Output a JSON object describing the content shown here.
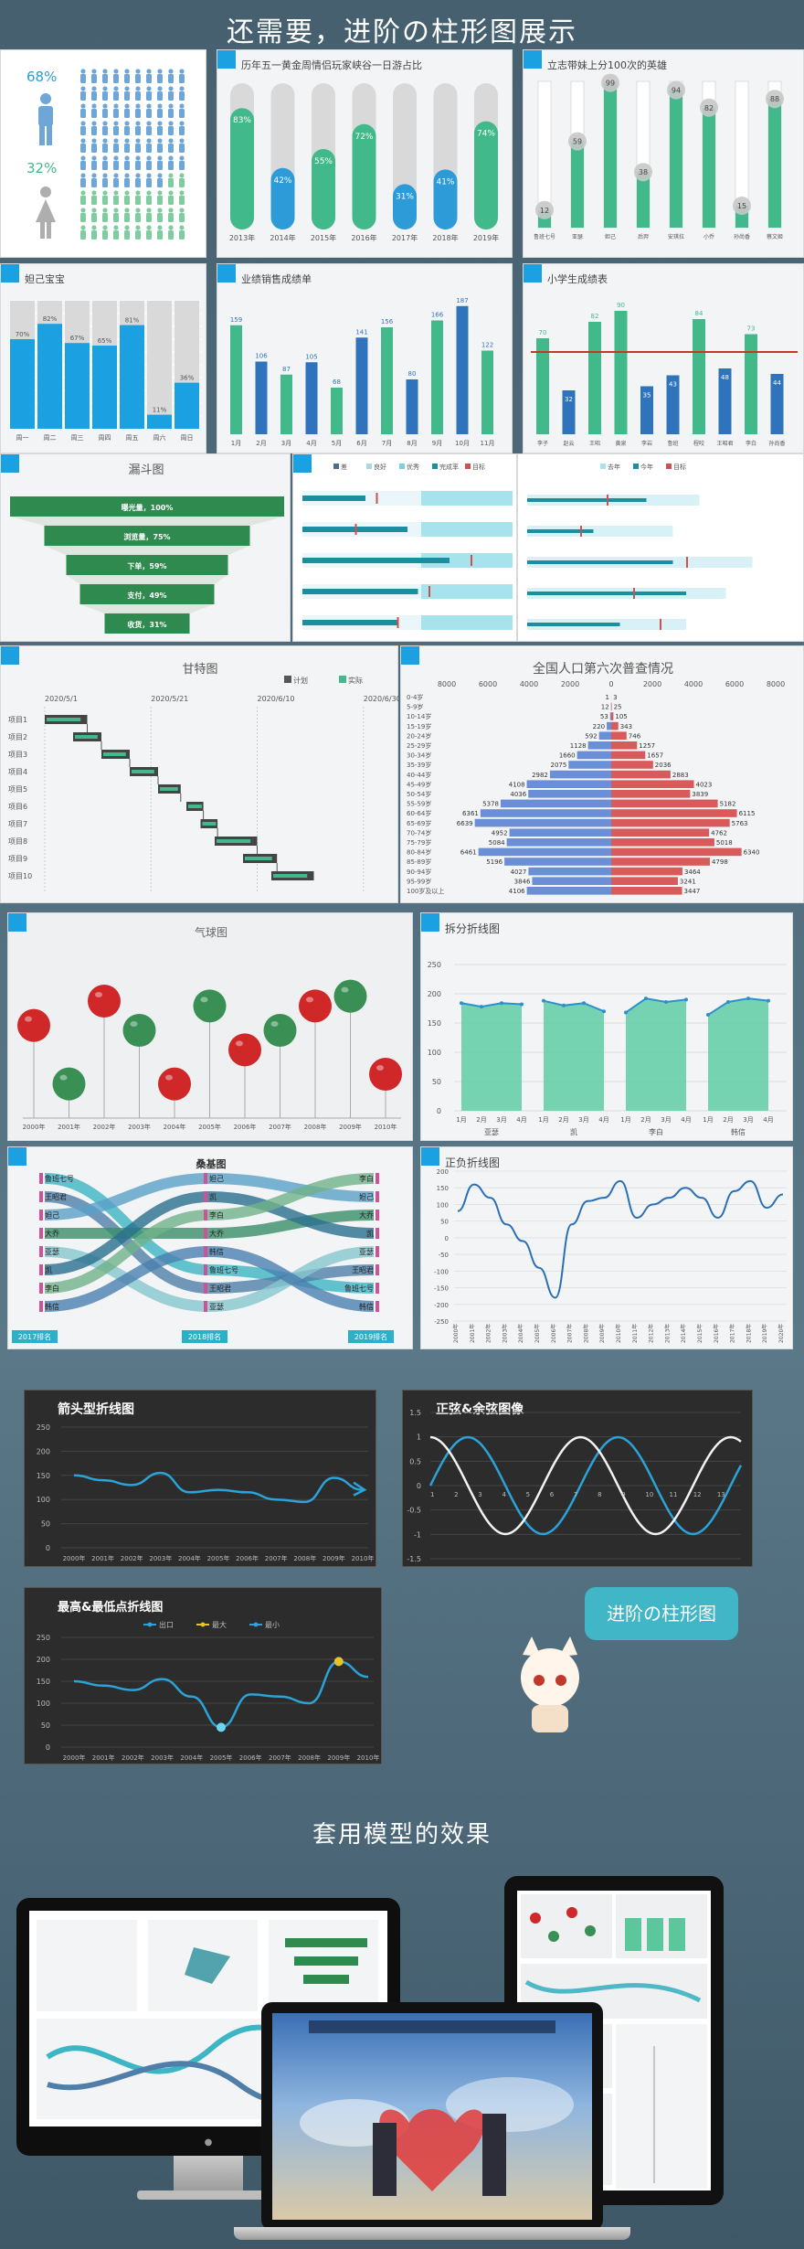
{
  "page": {
    "title": "还需要，进阶の柱形图展示",
    "section2": "套用模型的效果",
    "bubble": "进阶の柱形图"
  },
  "colors": {
    "green": "#42b98a",
    "blue": "#2c9bd8",
    "red": "#c0392b",
    "grey": "#d9d9d9"
  },
  "gender": {
    "male_pct": "68%",
    "female_pct": "32%",
    "male_share": 0.68
  },
  "capsule": {
    "title": "历年五一黄金周情侣玩家峡谷一日游占比",
    "chart_data": {
      "type": "bar",
      "categories": [
        "2013年",
        "2014年",
        "2015年",
        "2016年",
        "2017年",
        "2018年",
        "2019年"
      ],
      "values": [
        83,
        42,
        55,
        72,
        31,
        41,
        74
      ],
      "labels": [
        "83%",
        "42%",
        "55%",
        "72%",
        "31%",
        "41%",
        "74%"
      ],
      "ylim": [
        0,
        100
      ]
    }
  },
  "heroes": {
    "title": "立志带妹上分100次的英雄",
    "chart_data": {
      "type": "bar",
      "categories": [
        "鲁班七号",
        "亚瑟",
        "妲己",
        "后羿",
        "安琪拉",
        "小乔",
        "孙尚香",
        "蔡文姬"
      ],
      "values": [
        12,
        59,
        99,
        38,
        94,
        82,
        15,
        88
      ],
      "ylim": [
        0,
        100
      ]
    }
  },
  "daji": {
    "title": "妲己宝宝",
    "chart_data": {
      "type": "bar",
      "categories": [
        "周一",
        "周二",
        "周三",
        "周四",
        "周五",
        "周六",
        "周日"
      ],
      "values": [
        70,
        82,
        67,
        65,
        81,
        11,
        36
      ],
      "labels": [
        "70%",
        "82%",
        "67%",
        "65%",
        "81%",
        "11%",
        "36%"
      ],
      "ylim": [
        0,
        100
      ]
    }
  },
  "sales": {
    "title": "业绩销售成绩单",
    "chart_data": {
      "type": "bar",
      "categories": [
        "1月",
        "2月",
        "3月",
        "4月",
        "5月",
        "6月",
        "7月",
        "8月",
        "9月",
        "10月",
        "11月"
      ],
      "values": [
        159,
        106,
        87,
        105,
        68,
        141,
        156,
        80,
        166,
        187,
        122
      ]
    }
  },
  "pupils": {
    "title": "小学生成绩表",
    "chart_data": {
      "type": "bar",
      "categories": [
        "李子",
        "赵云",
        "王昭",
        "黄泉",
        "李岩",
        "鲁班",
        "程咬",
        "王昭君",
        "李白",
        "孙尚香"
      ],
      "values": [
        70,
        32,
        82,
        90,
        35,
        43,
        84,
        48,
        73,
        44
      ],
      "target": 60
    }
  },
  "funnel": {
    "title": "漏斗图",
    "chart_data": {
      "type": "bar",
      "categories": [
        "曝光量",
        "浏览量",
        "下单",
        "支付",
        "收货"
      ],
      "values": [
        100,
        75,
        59,
        49,
        31
      ],
      "labels": [
        "曝光量，100%",
        "浏览量，75%",
        "下单，59%",
        "支付，49%",
        "收货，31%"
      ]
    }
  },
  "bullet1": {
    "legend": [
      "差",
      "良好",
      "优秀",
      "完成率",
      "目标"
    ]
  },
  "bullet2": {
    "legend": [
      "去年",
      "今年",
      "目标"
    ]
  },
  "gantt": {
    "title": "甘特图",
    "legend": [
      "计划",
      "实际"
    ],
    "dates": [
      "2020/5/1",
      "2020/5/21",
      "2020/6/10",
      "2020/6/30"
    ],
    "chart_data": {
      "type": "bar",
      "categories": [
        "项目1",
        "项目2",
        "项目3",
        "项目4",
        "项目5",
        "项目6",
        "项目7",
        "项目8",
        "项目9",
        "项目10"
      ]
    }
  },
  "pyramid": {
    "title": "全国人口第六次普查情况",
    "axis": [
      "8000",
      "6000",
      "4000",
      "2000",
      "0",
      "2000",
      "4000",
      "6000",
      "8000"
    ],
    "chart_data": {
      "type": "bar",
      "categories": [
        "0-4岁",
        "5-9岁",
        "10-14岁",
        "15-19岁",
        "20-24岁",
        "25-29岁",
        "30-34岁",
        "35-39岁",
        "40-44岁",
        "45-49岁",
        "50-54岁",
        "55-59岁",
        "60-64岁",
        "65-69岁",
        "70-74岁",
        "75-79岁",
        "80-84岁",
        "85-89岁",
        "90-94岁",
        "95-99岁",
        "100岁及以上"
      ],
      "series": [
        {
          "values": [
            1,
            12,
            53,
            220,
            592,
            1128,
            1660,
            2075,
            2982,
            4108,
            4036,
            5378,
            6361,
            6639,
            4952,
            5084,
            6461,
            5196,
            4027,
            3846,
            4106
          ]
        },
        {
          "values": [
            3,
            25,
            105,
            343,
            746,
            1257,
            1657,
            2036,
            2883,
            4023,
            3839,
            5182,
            6115,
            5763,
            4762,
            5018,
            6340,
            4798,
            3464,
            3241,
            3447
          ]
        }
      ]
    }
  },
  "balloon": {
    "title": "气球图",
    "chart_data": {
      "type": "scatter",
      "categories": [
        "2000年",
        "2001年",
        "2002年",
        "2003年",
        "2004年",
        "2005年",
        "2006年",
        "2007年",
        "2008年",
        "2009年",
        "2010年"
      ],
      "values": [
        95,
        35,
        120,
        90,
        35,
        115,
        70,
        90,
        115,
        125,
        45
      ]
    }
  },
  "split": {
    "title": "拆分折线图",
    "groups": [
      "亚瑟",
      "凯",
      "李白",
      "韩信"
    ],
    "months": [
      "1月",
      "2月",
      "3月",
      "4月"
    ],
    "yticks": [
      "250",
      "200",
      "150",
      "100",
      "50",
      "0"
    ],
    "chart_data": {
      "type": "area",
      "series": [
        {
          "name": "亚瑟",
          "values": [
            184,
            178,
            184,
            182
          ]
        },
        {
          "name": "凯",
          "values": [
            188,
            180,
            184,
            170
          ]
        },
        {
          "name": "李白",
          "values": [
            168,
            192,
            186,
            190
          ]
        },
        {
          "name": "韩信",
          "values": [
            164,
            186,
            192,
            188
          ]
        }
      ],
      "ylim": [
        0,
        250
      ]
    }
  },
  "sankey": {
    "title": "桑基图",
    "left": [
      "鲁班七号",
      "王昭君",
      "妲己",
      "大乔",
      "亚瑟",
      "凯",
      "李白",
      "韩信"
    ],
    "mid": [
      "妲己",
      "凯",
      "李白",
      "大乔",
      "韩信",
      "鲁班七号",
      "王昭君",
      "亚瑟"
    ],
    "right": [
      "李白",
      "妲己",
      "大乔",
      "凯",
      "亚瑟",
      "王昭君",
      "鲁班七号",
      "韩信"
    ],
    "years": [
      "2017排名",
      "2018排名",
      "2019排名"
    ]
  },
  "posneg": {
    "title": "正负折线图",
    "yticks": [
      "200",
      "150",
      "100",
      "50",
      "0",
      "-50",
      "-100",
      "-150",
      "-200",
      "-250"
    ],
    "chart_data": {
      "type": "line",
      "x": [
        "2000年",
        "2001年",
        "2002年",
        "2003年",
        "2004年",
        "2005年",
        "2006年",
        "2007年",
        "2008年",
        "2009年",
        "2010年",
        "2011年",
        "2012年",
        "2013年",
        "2014年",
        "2015年",
        "2016年",
        "2017年",
        "2018年",
        "2019年",
        "2020年"
      ],
      "values": [
        80,
        160,
        120,
        40,
        -10,
        -90,
        -180,
        40,
        110,
        120,
        170,
        60,
        100,
        120,
        150,
        120,
        60,
        140,
        170,
        90,
        130
      ],
      "ylim": [
        -250,
        200
      ]
    }
  },
  "arrow": {
    "title": "箭头型折线图",
    "yticks": [
      "250",
      "200",
      "150",
      "100",
      "50",
      "0"
    ],
    "chart_data": {
      "type": "line",
      "x": [
        "2000年",
        "2001年",
        "2002年",
        "2003年",
        "2004年",
        "2005年",
        "2006年",
        "2007年",
        "2008年",
        "2009年",
        "2010年"
      ],
      "values": [
        150,
        140,
        130,
        155,
        115,
        120,
        115,
        100,
        95,
        145,
        120
      ],
      "ylim": [
        0,
        250
      ]
    }
  },
  "sincos": {
    "title": "正弦&余弦图像",
    "yticks": [
      "1.5",
      "1",
      "0.5",
      "0",
      "-0.5",
      "-1",
      "-1.5"
    ],
    "xticks": [
      "1",
      "2",
      "3",
      "4",
      "5",
      "6",
      "7",
      "8",
      "9",
      "10",
      "11",
      "12",
      "13"
    ],
    "chart_data": {
      "type": "line",
      "series": [
        {
          "name": "sin"
        },
        {
          "name": "cos"
        }
      ],
      "ylim": [
        -1.5,
        1.5
      ]
    }
  },
  "maxmin": {
    "title": "最高&最低点折线图",
    "legend": [
      "出口",
      "最大",
      "最小"
    ],
    "yticks": [
      "250",
      "200",
      "150",
      "100",
      "50",
      "0"
    ],
    "chart_data": {
      "type": "line",
      "x": [
        "2000年",
        "2001年",
        "2002年",
        "2003年",
        "2004年",
        "2005年",
        "2006年",
        "2007年",
        "2008年",
        "2009年",
        "2010年"
      ],
      "values": [
        150,
        140,
        130,
        155,
        115,
        45,
        120,
        115,
        100,
        195,
        160
      ],
      "ylim": [
        0,
        250
      ]
    }
  }
}
